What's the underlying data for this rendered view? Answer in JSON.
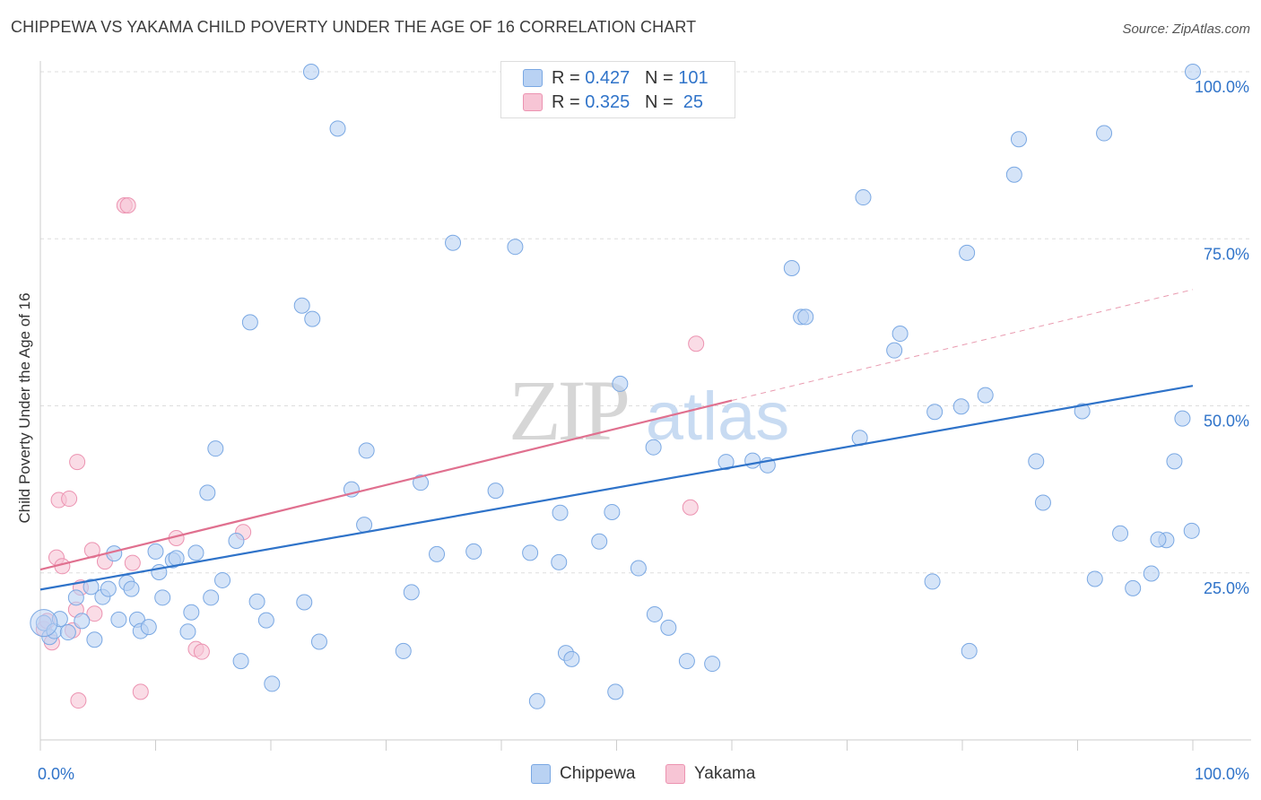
{
  "header": {
    "title": "CHIPPEWA VS YAKAMA CHILD POVERTY UNDER THE AGE OF 16 CORRELATION CHART",
    "source": "Source: ZipAtlas.com"
  },
  "watermark": {
    "part1": "ZIP",
    "part2": "atlas"
  },
  "colors": {
    "chippewa_fill": "#b9d2f3",
    "chippewa_stroke": "#7aa8e3",
    "chippewa_line": "#2f73c9",
    "yakama_fill": "#f7c5d5",
    "yakama_stroke": "#ec93b1",
    "yakama_line": "#e0708f",
    "grid": "#dddddd",
    "axis_text": "#2f73c9"
  },
  "legend_top": {
    "rows": [
      {
        "r_label": "R = ",
        "r_value": "0.427",
        "n_label": "N = ",
        "n_value": "101"
      },
      {
        "r_label": "R = ",
        "r_value": "0.325",
        "n_label": "N = ",
        "n_value": " 25"
      }
    ]
  },
  "chart_data": {
    "type": "scatter",
    "title": "CHIPPEWA VS YAKAMA CHILD POVERTY UNDER THE AGE OF 16 CORRELATION CHART",
    "xlabel": "",
    "ylabel": "Child Poverty Under the Age of 16",
    "xlim": [
      0,
      100
    ],
    "ylim": [
      0,
      100
    ],
    "x_tick_labels": [
      "0.0%",
      "100.0%"
    ],
    "y_tick_labels": [
      "25.0%",
      "50.0%",
      "75.0%",
      "100.0%"
    ],
    "y_ticks": [
      25,
      50,
      75,
      100
    ],
    "grid": true,
    "legend_position": "top-center and bottom",
    "series": [
      {
        "name": "Chippewa",
        "R": 0.427,
        "N": 101,
        "trend": {
          "x": [
            0,
            100
          ],
          "y": [
            22.5,
            53.0
          ]
        },
        "points": [
          [
            0.3,
            17.5
          ],
          [
            0.8,
            15.4
          ],
          [
            1.2,
            16.3
          ],
          [
            1.7,
            18.1
          ],
          [
            2.4,
            16.1
          ],
          [
            3.1,
            21.3
          ],
          [
            3.6,
            17.8
          ],
          [
            4.4,
            22.9
          ],
          [
            4.7,
            15.0
          ],
          [
            5.4,
            21.4
          ],
          [
            5.9,
            22.6
          ],
          [
            6.4,
            27.9
          ],
          [
            6.8,
            18.0
          ],
          [
            7.5,
            23.5
          ],
          [
            7.9,
            22.6
          ],
          [
            8.4,
            18.0
          ],
          [
            8.7,
            16.3
          ],
          [
            9.4,
            16.9
          ],
          [
            10.0,
            28.2
          ],
          [
            10.3,
            25.1
          ],
          [
            10.6,
            21.3
          ],
          [
            11.5,
            26.9
          ],
          [
            11.8,
            27.2
          ],
          [
            12.8,
            16.2
          ],
          [
            13.1,
            19.1
          ],
          [
            13.5,
            28.0
          ],
          [
            14.5,
            37.0
          ],
          [
            14.8,
            21.3
          ],
          [
            15.2,
            43.6
          ],
          [
            15.8,
            23.9
          ],
          [
            17.0,
            29.8
          ],
          [
            17.4,
            11.8
          ],
          [
            18.2,
            62.5
          ],
          [
            18.8,
            20.7
          ],
          [
            19.6,
            17.9
          ],
          [
            20.1,
            8.4
          ],
          [
            22.7,
            65.0
          ],
          [
            22.9,
            20.6
          ],
          [
            23.5,
            100.0
          ],
          [
            23.6,
            63.0
          ],
          [
            24.2,
            14.7
          ],
          [
            25.8,
            91.5
          ],
          [
            27.0,
            37.5
          ],
          [
            28.1,
            32.2
          ],
          [
            28.3,
            43.3
          ],
          [
            31.5,
            13.3
          ],
          [
            32.2,
            22.1
          ],
          [
            33.0,
            38.5
          ],
          [
            34.4,
            27.8
          ],
          [
            35.8,
            74.4
          ],
          [
            37.6,
            28.2
          ],
          [
            39.5,
            37.3
          ],
          [
            41.2,
            73.8
          ],
          [
            42.5,
            28.0
          ],
          [
            43.1,
            5.8
          ],
          [
            45.0,
            26.6
          ],
          [
            45.1,
            34.0
          ],
          [
            45.6,
            13.0
          ],
          [
            46.1,
            12.1
          ],
          [
            48.5,
            29.7
          ],
          [
            49.6,
            34.1
          ],
          [
            49.9,
            7.2
          ],
          [
            50.3,
            53.3
          ],
          [
            51.9,
            25.7
          ],
          [
            53.2,
            43.8
          ],
          [
            53.3,
            18.8
          ],
          [
            54.5,
            16.8
          ],
          [
            56.1,
            11.8
          ],
          [
            58.3,
            11.4
          ],
          [
            59.5,
            41.6
          ],
          [
            61.8,
            41.8
          ],
          [
            63.1,
            41.1
          ],
          [
            65.2,
            70.6
          ],
          [
            66.0,
            63.3
          ],
          [
            66.4,
            63.3
          ],
          [
            71.1,
            45.2
          ],
          [
            71.4,
            81.2
          ],
          [
            74.1,
            58.3
          ],
          [
            74.6,
            60.8
          ],
          [
            77.4,
            23.7
          ],
          [
            77.6,
            49.1
          ],
          [
            79.9,
            49.9
          ],
          [
            80.4,
            72.9
          ],
          [
            80.6,
            13.3
          ],
          [
            82.0,
            51.6
          ],
          [
            84.5,
            84.6
          ],
          [
            84.9,
            89.9
          ],
          [
            86.4,
            41.7
          ],
          [
            87.0,
            35.5
          ],
          [
            90.4,
            49.2
          ],
          [
            91.5,
            24.1
          ],
          [
            92.3,
            90.8
          ],
          [
            93.7,
            30.9
          ],
          [
            94.8,
            22.7
          ],
          [
            96.4,
            24.9
          ],
          [
            97.7,
            29.9
          ],
          [
            98.4,
            41.7
          ],
          [
            99.1,
            48.1
          ],
          [
            99.9,
            31.3
          ],
          [
            100.0,
            100.0
          ],
          [
            97.0,
            30.0
          ]
        ]
      },
      {
        "name": "Yakama",
        "R": 0.325,
        "N": 25,
        "trend": {
          "x": [
            0,
            60
          ],
          "y": [
            25.5,
            50.8
          ]
        },
        "trend_dashed": {
          "x": [
            60,
            100
          ],
          "y": [
            50.8,
            67.4
          ]
        },
        "points": [
          [
            0.3,
            16.6
          ],
          [
            0.6,
            17.8
          ],
          [
            1.0,
            14.6
          ],
          [
            1.4,
            27.3
          ],
          [
            1.6,
            35.9
          ],
          [
            1.9,
            26.0
          ],
          [
            2.5,
            36.1
          ],
          [
            2.8,
            16.4
          ],
          [
            3.1,
            19.5
          ],
          [
            3.2,
            41.6
          ],
          [
            3.3,
            5.9
          ],
          [
            3.5,
            22.8
          ],
          [
            4.5,
            28.4
          ],
          [
            4.7,
            18.9
          ],
          [
            5.6,
            26.7
          ],
          [
            7.3,
            80.0
          ],
          [
            7.6,
            80.0
          ],
          [
            8.0,
            26.5
          ],
          [
            8.7,
            7.2
          ],
          [
            11.8,
            30.2
          ],
          [
            13.5,
            13.6
          ],
          [
            17.6,
            31.1
          ],
          [
            56.4,
            34.8
          ],
          [
            56.9,
            59.3
          ],
          [
            14.0,
            13.2
          ]
        ]
      }
    ]
  },
  "legend_bottom": {
    "items": [
      {
        "label": "Chippewa"
      },
      {
        "label": "Yakama"
      }
    ]
  }
}
